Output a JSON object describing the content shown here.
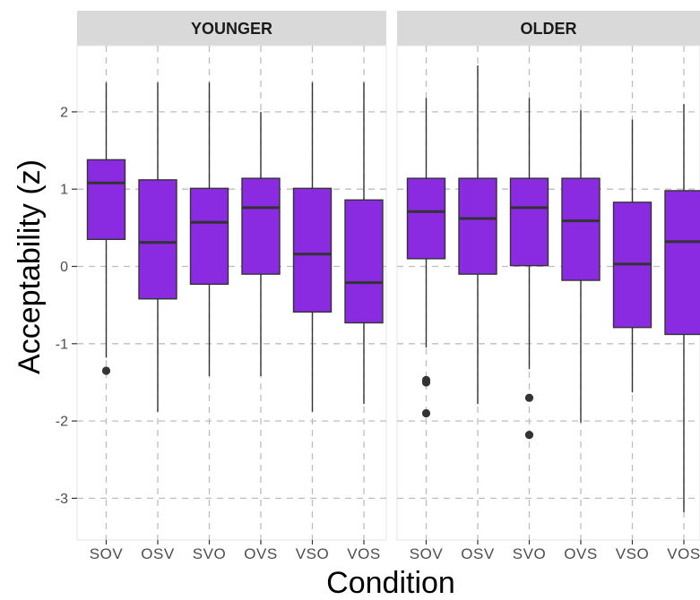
{
  "chart_data": {
    "type": "boxplot",
    "xlabel": "Condition",
    "ylabel": "Acceptability (z)",
    "ylim": [
      -3.45,
      2.95
    ],
    "yticks": [
      -3,
      -2,
      -1,
      0,
      1,
      2
    ],
    "grid": true,
    "colors": {
      "box_fill": "#8a2be2",
      "box_stroke": "#333333",
      "strip_bg": "#d9d9d9",
      "grid": "#bdbdbd"
    },
    "categories": [
      "SOV",
      "OSV",
      "SVO",
      "OVS",
      "VSO",
      "VOS"
    ],
    "panels": [
      {
        "title": "YOUNGER",
        "boxes": [
          {
            "category": "SOV",
            "min": -1.18,
            "q1": 0.35,
            "median": 1.08,
            "q3": 1.38,
            "max": 2.38,
            "outliers": [
              -1.35
            ]
          },
          {
            "category": "OSV",
            "min": -1.88,
            "q1": -0.42,
            "median": 0.31,
            "q3": 1.12,
            "max": 2.38,
            "outliers": []
          },
          {
            "category": "SVO",
            "min": -1.42,
            "q1": -0.23,
            "median": 0.57,
            "q3": 1.01,
            "max": 2.38,
            "outliers": []
          },
          {
            "category": "OVS",
            "min": -1.42,
            "q1": -0.1,
            "median": 0.76,
            "q3": 1.14,
            "max": 2.0,
            "outliers": []
          },
          {
            "category": "VSO",
            "min": -1.88,
            "q1": -0.59,
            "median": 0.16,
            "q3": 1.01,
            "max": 2.38,
            "outliers": []
          },
          {
            "category": "VOS",
            "min": -1.78,
            "q1": -0.73,
            "median": -0.21,
            "q3": 0.86,
            "max": 2.38,
            "outliers": []
          }
        ]
      },
      {
        "title": "OLDER",
        "boxes": [
          {
            "category": "SOV",
            "min": -1.05,
            "q1": 0.1,
            "median": 0.71,
            "q3": 1.14,
            "max": 2.18,
            "outliers": [
              -1.47,
              -1.5,
              -1.9
            ]
          },
          {
            "category": "OSV",
            "min": -1.78,
            "q1": -0.1,
            "median": 0.62,
            "q3": 1.14,
            "max": 2.6,
            "outliers": []
          },
          {
            "category": "SVO",
            "min": -1.33,
            "q1": 0.01,
            "median": 0.76,
            "q3": 1.14,
            "max": 2.18,
            "outliers": [
              -1.7,
              -2.18
            ]
          },
          {
            "category": "OVS",
            "min": -2.02,
            "q1": -0.18,
            "median": 0.59,
            "q3": 1.14,
            "max": 2.02,
            "outliers": []
          },
          {
            "category": "VSO",
            "min": -1.63,
            "q1": -0.79,
            "median": 0.03,
            "q3": 0.83,
            "max": 1.9,
            "outliers": []
          },
          {
            "category": "VOS",
            "min": -3.18,
            "q1": -0.88,
            "median": 0.32,
            "q3": 0.98,
            "max": 2.1,
            "outliers": []
          }
        ]
      }
    ]
  }
}
